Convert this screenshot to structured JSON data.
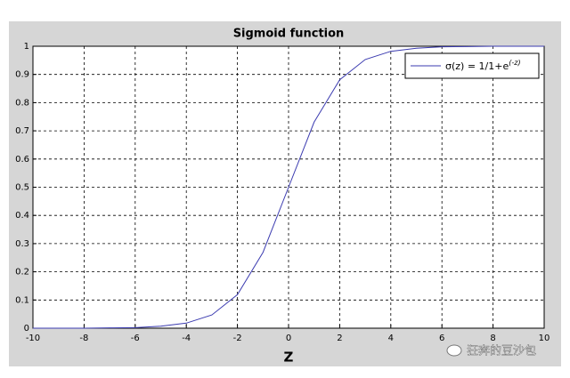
{
  "chart_data": {
    "type": "line",
    "title": "Sigmoid function",
    "x_label": "Z",
    "x": [
      -10,
      -9,
      -8,
      -7,
      -6,
      -5,
      -4,
      -3,
      -2,
      -1,
      0,
      1,
      2,
      3,
      4,
      5,
      6,
      7,
      8,
      9,
      10
    ],
    "series": [
      {
        "name": "σ(z) = 1/1+e",
        "name_superscript": "(-z)",
        "color": "#3b3bb0",
        "values": [
          0,
          0,
          0,
          0.001,
          0.002,
          0.007,
          0.018,
          0.047,
          0.119,
          0.269,
          0.5,
          0.731,
          0.881,
          0.953,
          0.982,
          0.993,
          0.998,
          0.999,
          1,
          1,
          1
        ]
      }
    ],
    "xlim": [
      -10,
      10
    ],
    "xticks": [
      -10,
      -8,
      -6,
      -4,
      -2,
      0,
      2,
      4,
      6,
      8,
      10
    ],
    "ylim": [
      0,
      1
    ],
    "yticks": [
      0,
      0.1,
      0.2,
      0.3,
      0.4,
      0.5,
      0.6,
      0.7,
      0.8,
      0.9,
      1
    ],
    "grid": true,
    "legend_position": "top-right"
  },
  "watermark": "狂奔的豆沙包"
}
